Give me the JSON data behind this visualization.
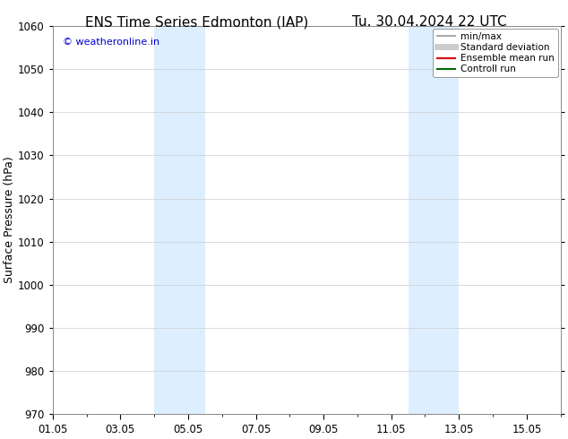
{
  "title_left": "ENS Time Series Edmonton (IAP)",
  "title_right": "Tu. 30.04.2024 22 UTC",
  "ylabel": "Surface Pressure (hPa)",
  "ylim": [
    970,
    1060
  ],
  "yticks": [
    970,
    980,
    990,
    1000,
    1010,
    1020,
    1030,
    1040,
    1050,
    1060
  ],
  "xstart": "2024-05-01",
  "xend": "2024-05-16",
  "xtick_labels": [
    "01.05",
    "03.05",
    "05.05",
    "07.05",
    "09.05",
    "11.05",
    "13.05",
    "15.05"
  ],
  "xtick_days": [
    1,
    3,
    5,
    7,
    9,
    11,
    13,
    15
  ],
  "shaded_bands": [
    {
      "day_start": 4.0,
      "day_end": 5.5
    },
    {
      "day_start": 11.5,
      "day_end": 13.0
    }
  ],
  "shaded_color": "#ddeeff",
  "watermark_text": "© weatheronline.in",
  "watermark_color": "#0000cc",
  "legend_items": [
    {
      "label": "min/max",
      "color": "#aaaaaa",
      "lw": 1.5
    },
    {
      "label": "Standard deviation",
      "color": "#cccccc",
      "lw": 5
    },
    {
      "label": "Ensemble mean run",
      "color": "#dd0000",
      "lw": 1.5
    },
    {
      "label": "Controll run",
      "color": "#006600",
      "lw": 1.5
    }
  ],
  "background_color": "#ffffff",
  "plot_bg_color": "#ffffff",
  "grid_color": "#cccccc",
  "title_fontsize": 11,
  "ylabel_fontsize": 9,
  "tick_fontsize": 8.5,
  "legend_fontsize": 7.5
}
